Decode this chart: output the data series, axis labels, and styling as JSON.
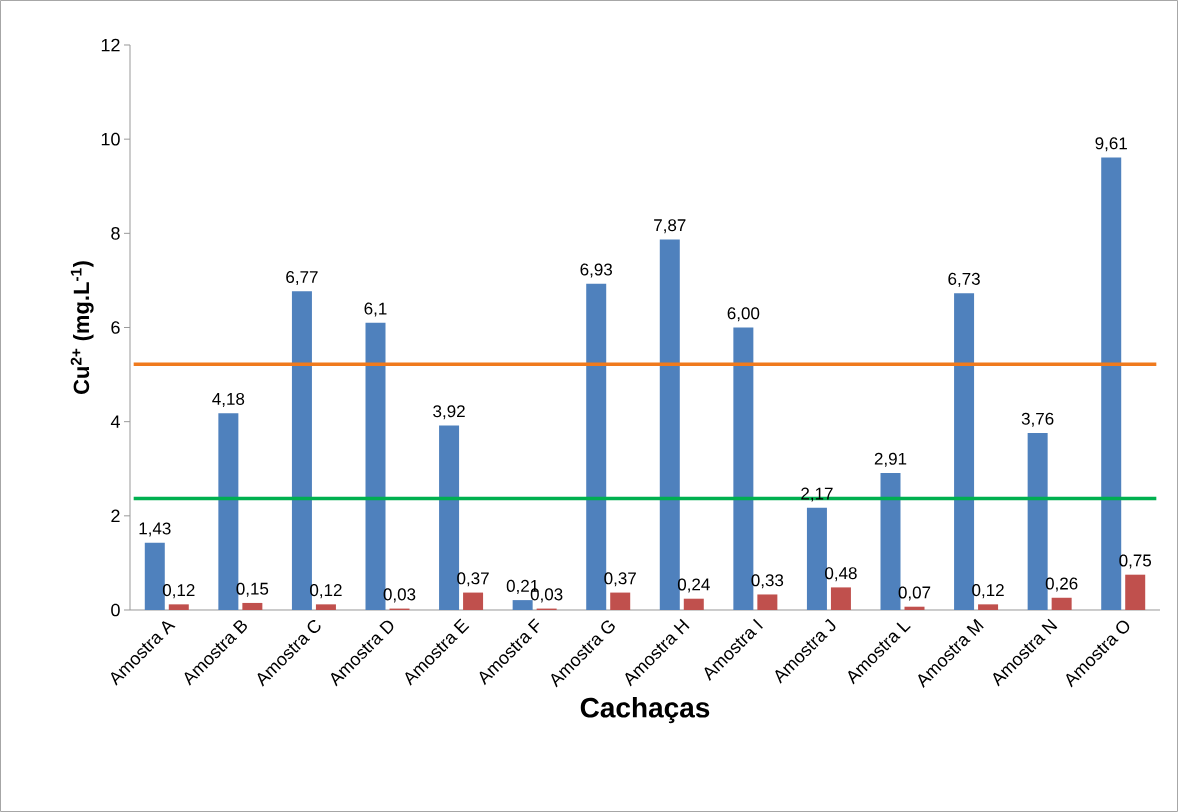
{
  "chart_data": {
    "type": "bar",
    "xlabel": "Cachaças",
    "ylabel": "**Cu$^{2+}$ (mg.L$^{-1}$)**",
    "categories": [
      "Amostra A",
      "Amostra B",
      "Amostra C",
      "Amostra D",
      "Amostra E",
      "Amostra F",
      "Amostra G",
      "Amostra H",
      "Amostra I",
      "Amostra J",
      "Amostra L",
      "Amostra M",
      "Amostra N",
      "Amostra O"
    ],
    "series": [
      {
        "color": "#4f81bd",
        "values": [
          1.43,
          4.18,
          6.77,
          6.1,
          3.92,
          0.21,
          6.93,
          7.87,
          6.0,
          2.17,
          2.91,
          6.73,
          3.76,
          9.61
        ],
        "value_labels": [
          "1,43",
          "4,18",
          "6,77",
          "6,1",
          "3,92",
          "0,21",
          "6,93",
          "7,87",
          "6,00",
          "2,17",
          "2,91",
          "6,73",
          "3,76",
          "9,61"
        ]
      },
      {
        "color": "#c0504d",
        "values": [
          0.12,
          0.15,
          0.12,
          0.03,
          0.37,
          0.03,
          0.37,
          0.24,
          0.33,
          0.48,
          0.07,
          0.12,
          0.26,
          0.75
        ],
        "value_labels": [
          "0,12",
          "0,15",
          "0,12",
          "0,03",
          "0,37",
          "0,03",
          "0,37",
          "0,24",
          "0,33",
          "0,48",
          "0,07",
          "0,12",
          "0,26",
          "0,75"
        ]
      }
    ],
    "ylim": [
      0,
      12
    ],
    "yticks": [
      0,
      2,
      4,
      6,
      8,
      10,
      12
    ],
    "ref_lines": [
      {
        "axis": "y",
        "value": 5.22,
        "color": "#f07a1d"
      },
      {
        "axis": "y",
        "value": 2.37,
        "color": "#00b050"
      }
    ]
  }
}
